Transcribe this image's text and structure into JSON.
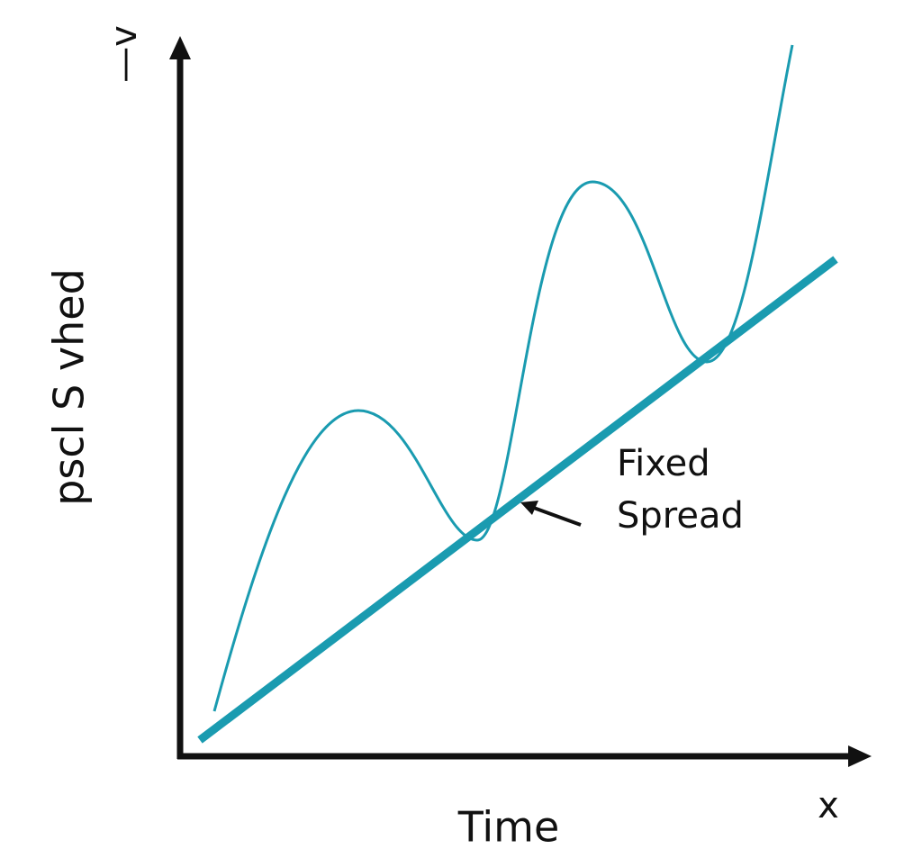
{
  "y_axis": {
    "label": "pscl S vhed",
    "top_label": "—v"
  },
  "x_axis": {
    "label": "Time",
    "end_label": "x"
  },
  "annotation": {
    "lines": [
      "Fixed",
      "Spread"
    ]
  }
}
